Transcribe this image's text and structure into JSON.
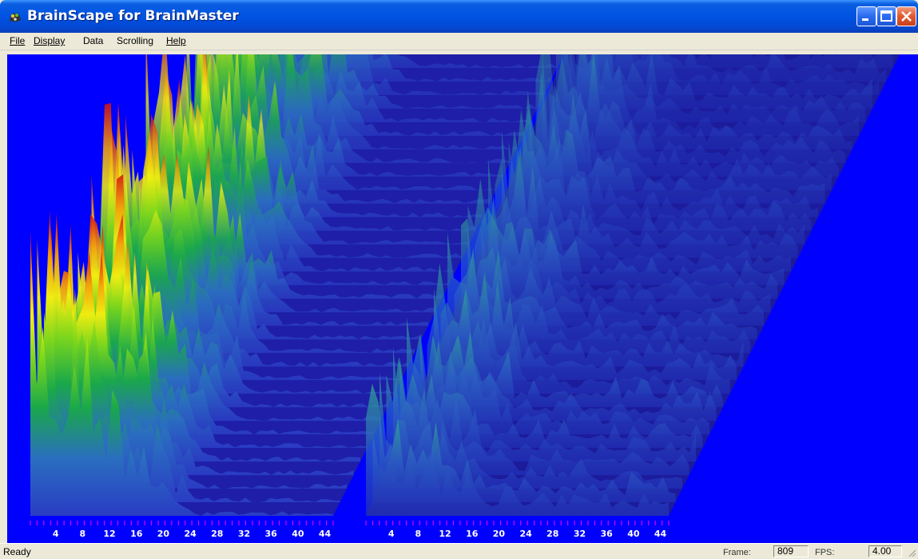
{
  "window": {
    "title": "BrainScape for BrainMaster",
    "icon": "brainscape-app-icon",
    "controls": [
      "minimize-icon",
      "maximize-icon",
      "close-icon"
    ]
  },
  "menu": [
    {
      "label": "File",
      "mnemonic": "F"
    },
    {
      "label": "Display",
      "mnemonic": "D"
    },
    {
      "label": "Data",
      "mnemonic": ""
    },
    {
      "label": "Scrolling",
      "mnemonic": ""
    },
    {
      "label": "Help",
      "mnemonic": "H"
    }
  ],
  "colors": {
    "background": "#0000fe",
    "base": "#1e1ea8",
    "frequency_labels": "#ffffff",
    "tick_marks": "#ff00ff"
  },
  "panels": [
    {
      "axis_labels": [
        "4",
        "8",
        "12",
        "16",
        "20",
        "24",
        "28",
        "32",
        "36",
        "40",
        "44"
      ]
    },
    {
      "axis_labels": [
        "4",
        "8",
        "12",
        "16",
        "20",
        "24",
        "28",
        "32",
        "36",
        "40",
        "44"
      ]
    }
  ],
  "status": {
    "text": "Ready",
    "frame_label": "Frame:",
    "frame_value": "809",
    "fps_label": "FPS:",
    "fps_value": "4.00"
  }
}
